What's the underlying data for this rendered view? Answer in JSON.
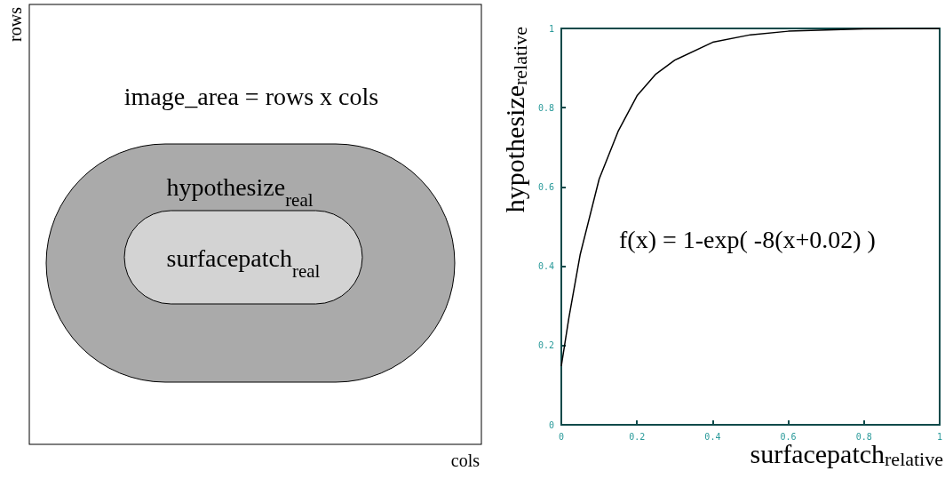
{
  "chart_data": [
    {
      "type": "other",
      "xlabel": "cols",
      "ylabel": "rows",
      "annotations": [
        "image_area = rows x cols",
        "hypothesize$_{real}$",
        "surfacepatch$_{real}$"
      ]
    },
    {
      "type": "line",
      "xlabel": "surfacepatch$_{relative}$",
      "ylabel": "hypothesize$_{relative}$",
      "annotations": [
        "f(x) = 1-exp( -8(x+0.02) )"
      ],
      "x": [
        0,
        0.02,
        0.05,
        0.1,
        0.15,
        0.2,
        0.25,
        0.3,
        0.4,
        0.5,
        0.6,
        0.8,
        1.0
      ],
      "series": [
        {
          "color": "#000000",
          "values": [
            0.148,
            0.27,
            0.43,
            0.62,
            0.74,
            0.83,
            0.885,
            0.92,
            0.965,
            0.984,
            0.993,
            0.999,
            1.0
          ]
        }
      ],
      "xlim": [
        0,
        1
      ],
      "ylim": [
        0,
        1
      ],
      "xticks": [
        0,
        0.2,
        0.4,
        0.6,
        0.8,
        1
      ],
      "yticks": [
        0,
        0.2,
        0.4,
        0.6,
        0.8,
        1
      ],
      "grid": false,
      "marker": "none",
      "line_style": "solid"
    }
  ]
}
